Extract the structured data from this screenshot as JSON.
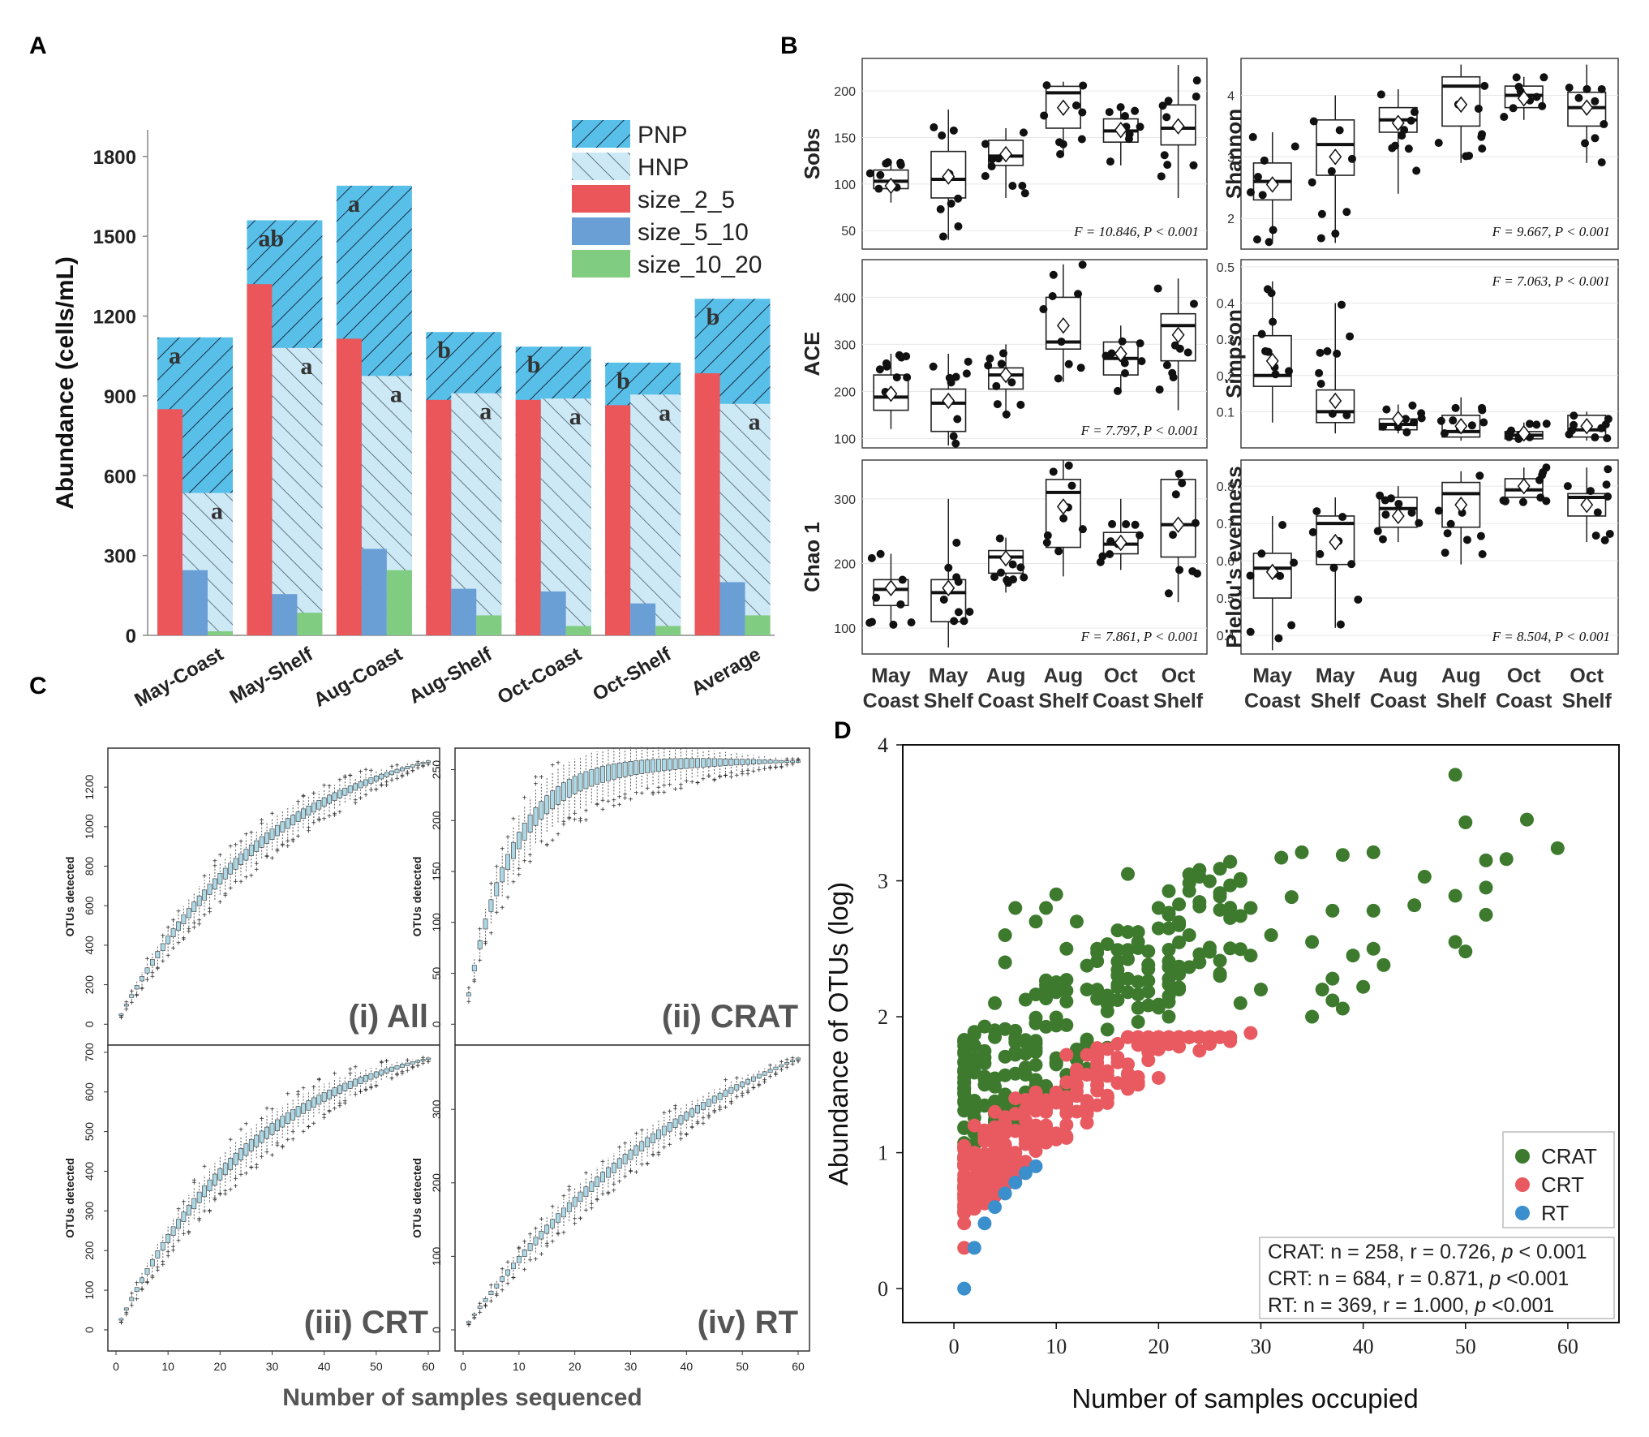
{
  "panel_labels": {
    "a": "A",
    "b": "B",
    "c": "C",
    "d": "D"
  },
  "colors": {
    "pnp": "#58c0e8",
    "hnp": "#cde9f6",
    "size_2_5": "#ea5659",
    "size_5_10": "#6a9fd6",
    "size_10_20": "#80cc80",
    "crat": "#3d7a2e",
    "crt": "#e85a60",
    "rt": "#3a8fcc",
    "box_fill": "#add8e6"
  },
  "panel_a": {
    "chart_data": {
      "type": "bar",
      "ylabel": "Abundance (cells/mL)",
      "ylim": [
        0,
        1900
      ],
      "yticks": [
        "0",
        "300",
        "600",
        "900",
        "1200",
        "1500",
        "1800"
      ],
      "categories": [
        "May-Coast",
        "May-Shelf",
        "Aug-Coast",
        "Aug-Shelf",
        "Oct-Coast",
        "Oct-Shelf",
        "Average"
      ],
      "legend": [
        "PNP",
        "HNP",
        "size_2_5",
        "size_5_10",
        "size_10_20"
      ],
      "series": [
        {
          "name": "PNP",
          "values": [
            1120,
            1560,
            1690,
            1140,
            1085,
            1025,
            1265
          ]
        },
        {
          "name": "HNP",
          "values": [
            535,
            1080,
            975,
            910,
            890,
            905,
            870
          ]
        },
        {
          "name": "size_2_5",
          "values": [
            850,
            1320,
            1115,
            885,
            885,
            865,
            985
          ]
        },
        {
          "name": "size_5_10",
          "values": [
            245,
            155,
            325,
            175,
            165,
            120,
            200
          ]
        },
        {
          "name": "size_10_20",
          "values": [
            15,
            85,
            245,
            75,
            35,
            35,
            75
          ]
        }
      ],
      "pnp_letters": [
        "a",
        "ab",
        "a",
        "b",
        "b",
        "b",
        "b"
      ],
      "hnp_letters": [
        "a",
        "a",
        "a",
        "a",
        "a",
        "a",
        "a"
      ]
    }
  },
  "panel_b": {
    "chart_data": {
      "type": "boxplot",
      "groups_top": [
        "May",
        "May",
        "Aug",
        "Aug",
        "Oct",
        "Oct"
      ],
      "groups_bottom": [
        "Coast",
        "Shelf",
        "Coast",
        "Shelf",
        "Coast",
        "Shelf"
      ],
      "panels": [
        {
          "ylabel": "Sobs",
          "ylim": [
            30,
            235
          ],
          "yticks": [
            50,
            100,
            150,
            200
          ],
          "stat": "F = 10.846, P < 0.001",
          "boxes": [
            [
              80,
              95,
              103,
              115,
              125,
              98
            ],
            [
              40,
              85,
              105,
              135,
              180,
              108
            ],
            [
              85,
              120,
              130,
              147,
              160,
              132
            ],
            [
              130,
              160,
              198,
              205,
              210,
              182
            ],
            [
              120,
              145,
              157,
              170,
              185,
              158
            ],
            [
              85,
              142,
              160,
              185,
              228,
              162
            ]
          ]
        },
        {
          "ylabel": "Shannon",
          "ylim": [
            1.5,
            4.6
          ],
          "yticks": [
            2,
            3,
            4
          ],
          "stat": "F = 9.667, P < 0.001",
          "boxes": [
            [
              1.6,
              2.3,
              2.6,
              2.9,
              3.4,
              2.55
            ],
            [
              1.6,
              2.7,
              3.2,
              3.6,
              4.0,
              3.0
            ],
            [
              2.4,
              3.4,
              3.6,
              3.8,
              4.1,
              3.55
            ],
            [
              2.9,
              3.5,
              4.15,
              4.3,
              4.5,
              3.85
            ],
            [
              3.6,
              3.8,
              4.0,
              4.15,
              4.3,
              3.95
            ],
            [
              2.9,
              3.5,
              3.8,
              4.05,
              4.5,
              3.8
            ]
          ]
        },
        {
          "ylabel": "ACE",
          "ylim": [
            80,
            480
          ],
          "yticks": [
            100,
            200,
            300,
            400
          ],
          "stat": "F = 7.797,   P < 0.001",
          "boxes": [
            [
              120,
              160,
              188,
              235,
              280,
              195
            ],
            [
              85,
              115,
              175,
              205,
              280,
              180
            ],
            [
              150,
              205,
              235,
              250,
              300,
              235
            ],
            [
              220,
              290,
              305,
              400,
              470,
              340
            ],
            [
              200,
              235,
              270,
              305,
              340,
              280
            ],
            [
              160,
              265,
              340,
              365,
              440,
              320
            ]
          ]
        },
        {
          "ylabel": "Simpson",
          "ylim": [
            0,
            0.52
          ],
          "yticks": [
            0.1,
            0.2,
            0.3,
            0.4,
            0.5
          ],
          "stat": "F = 7.063, P < 0.001",
          "boxes": [
            [
              0.07,
              0.17,
              0.2,
              0.31,
              0.46,
              0.24
            ],
            [
              0.04,
              0.07,
              0.1,
              0.16,
              0.4,
              0.13
            ],
            [
              0.04,
              0.05,
              0.065,
              0.08,
              0.12,
              0.08
            ],
            [
              0.02,
              0.03,
              0.045,
              0.09,
              0.14,
              0.06
            ],
            [
              0.02,
              0.025,
              0.035,
              0.045,
              0.07,
              0.04
            ],
            [
              0.02,
              0.03,
              0.05,
              0.09,
              0.1,
              0.06
            ]
          ]
        },
        {
          "ylabel": "Chao 1",
          "ylim": [
            60,
            360
          ],
          "yticks": [
            100,
            200,
            300
          ],
          "stat": "F = 7.861, P < 0.001",
          "boxes": [
            [
              105,
              135,
              160,
              175,
              215,
              162
            ],
            [
              70,
              110,
              155,
              175,
              300,
              162
            ],
            [
              155,
              185,
              210,
              220,
              240,
              208
            ],
            [
              180,
              225,
              310,
              330,
              360,
              288
            ],
            [
              190,
              215,
              230,
              248,
              300,
              232
            ],
            [
              140,
              210,
              260,
              330,
              340,
              260
            ]
          ]
        },
        {
          "ylabel": "Pielou's evenness",
          "ylim": [
            0.35,
            0.87
          ],
          "yticks": [
            0.4,
            0.5,
            0.6,
            0.7,
            0.8
          ],
          "stat": "F = 8.504, P < 0.001",
          "boxes": [
            [
              0.36,
              0.5,
              0.58,
              0.62,
              0.72,
              0.57
            ],
            [
              0.42,
              0.59,
              0.7,
              0.72,
              0.77,
              0.65
            ],
            [
              0.65,
              0.69,
              0.74,
              0.77,
              0.8,
              0.72
            ],
            [
              0.59,
              0.69,
              0.78,
              0.81,
              0.84,
              0.75
            ],
            [
              0.75,
              0.77,
              0.79,
              0.82,
              0.85,
              0.8
            ],
            [
              0.65,
              0.72,
              0.77,
              0.78,
              0.85,
              0.75
            ]
          ]
        }
      ]
    }
  },
  "panel_c": {
    "chart_data": {
      "type": "boxplot",
      "xlabel": "Number of samples sequenced",
      "ylabel": "OTUs detected",
      "xticks": [
        0,
        10,
        20,
        30,
        40,
        50,
        60
      ],
      "subplots": [
        {
          "label": "(i) All",
          "ymax": 1330,
          "yticks": [
            0,
            200,
            400,
            600,
            800,
            1000,
            1200
          ],
          "k": 0.032
        },
        {
          "label": "(ii) CRAT",
          "ymax": 258,
          "yticks": [
            0,
            50,
            100,
            150,
            200,
            250
          ],
          "k": 0.12
        },
        {
          "label": "(iii) CRT",
          "ymax": 684,
          "yticks": [
            0,
            100,
            200,
            300,
            400,
            500,
            600,
            700
          ],
          "k": 0.035
        },
        {
          "label": "(iv) RT",
          "ymax": 369,
          "yticks": [
            0,
            100,
            200,
            300
          ],
          "k": 0.02
        }
      ]
    }
  },
  "panel_d": {
    "chart_data": {
      "type": "scatter",
      "xlabel": "Number of samples occupied",
      "ylabel": "Abundance of  OTUs (log)",
      "xlim": [
        -5,
        65
      ],
      "ylim": [
        -0.25,
        4
      ],
      "xticks": [
        "0",
        "10",
        "20",
        "30",
        "40",
        "50",
        "60"
      ],
      "yticks": [
        "0",
        "1",
        "2",
        "3",
        "4"
      ],
      "legend": [
        "CRAT",
        "CRT",
        "RT"
      ],
      "stats": [
        {
          "prefix": "CRAT: n = 258, r = 0.726, ",
          "p": "p",
          "suffix": " < 0.001"
        },
        {
          "prefix": "CRT: n = 684, r = 0.871, ",
          "p": "p",
          "suffix": " <0.001"
        },
        {
          "prefix": "RT: n = 369, r = 1.000, ",
          "p": "p",
          "suffix": " <0.001"
        }
      ],
      "series": [
        {
          "name": "CRAT",
          "points": [
            [
              49,
              3.78
            ],
            [
              50,
              3.43
            ],
            [
              56,
              3.45
            ],
            [
              59,
              3.24
            ],
            [
              46,
              3.03
            ],
            [
              52,
              3.15
            ],
            [
              54,
              3.16
            ],
            [
              52,
              2.95
            ],
            [
              49,
              2.89
            ],
            [
              49,
              2.55
            ],
            [
              50,
              2.48
            ],
            [
              45,
              2.82
            ],
            [
              52,
              2.75
            ],
            [
              42,
              2.38
            ],
            [
              41,
              2.5
            ],
            [
              39,
              2.45
            ],
            [
              40,
              2.22
            ],
            [
              38,
              2.06
            ],
            [
              37,
              2.12
            ],
            [
              35,
              2.0
            ],
            [
              36,
              2.2
            ],
            [
              37,
              2.28
            ],
            [
              35,
              2.55
            ],
            [
              37,
              2.78
            ],
            [
              38,
              3.19
            ],
            [
              41,
              3.21
            ],
            [
              41,
              2.78
            ],
            [
              34,
              3.21
            ],
            [
              32,
              3.17
            ],
            [
              33,
              2.88
            ],
            [
              29,
              2.8
            ],
            [
              31,
              2.6
            ],
            [
              29,
              2.45
            ],
            [
              30,
              2.2
            ],
            [
              28,
              2.1
            ],
            [
              26,
              2.3
            ],
            [
              24,
              2.4
            ],
            [
              23,
              2.6
            ],
            [
              22,
              2.2
            ],
            [
              21,
              2.0
            ],
            [
              20,
              2.8
            ],
            [
              21,
              2.75
            ],
            [
              21,
              2.65
            ],
            [
              19,
              2.35
            ],
            [
              18,
              2.55
            ],
            [
              17,
              3.05
            ],
            [
              16,
              2.3
            ],
            [
              15,
              2.1
            ],
            [
              14,
              2.5
            ],
            [
              12,
              2.7
            ],
            [
              11,
              2.5
            ],
            [
              13,
              2.2
            ],
            [
              10,
              2.9
            ],
            [
              9,
              2.8
            ],
            [
              8,
              2.7
            ],
            [
              6,
              2.8
            ],
            [
              5,
              2.6
            ],
            [
              5,
              2.4
            ],
            [
              4,
              2.1
            ],
            [
              4,
              1.9
            ],
            [
              3,
              1.7
            ],
            [
              3,
              1.5
            ]
          ]
        },
        {
          "name": "CRT",
          "points": [
            [
              29,
              1.88
            ],
            [
              27,
              1.82
            ],
            [
              25,
              1.8
            ],
            [
              24,
              1.75
            ],
            [
              22,
              1.78
            ],
            [
              20,
              1.55
            ],
            [
              18,
              1.5
            ],
            [
              19,
              1.68
            ],
            [
              17,
              1.65
            ],
            [
              16,
              1.7
            ],
            [
              15,
              1.6
            ],
            [
              14,
              1.55
            ],
            [
              12,
              1.45
            ],
            [
              10,
              1.4
            ],
            [
              11,
              1.72
            ],
            [
              9,
              1.3
            ],
            [
              8,
              1.2
            ],
            [
              7,
              1.1
            ],
            [
              6,
              1.0
            ],
            [
              5,
              0.9
            ],
            [
              4,
              0.8
            ],
            [
              3,
              0.75
            ],
            [
              2,
              0.7
            ],
            [
              1,
              0.48
            ],
            [
              1,
              0.3
            ],
            [
              1,
              0.6
            ],
            [
              1,
              0.75
            ],
            [
              1,
              0.9
            ],
            [
              1,
              1.05
            ],
            [
              2,
              1.0
            ],
            [
              2,
              1.2
            ],
            [
              3,
              1.15
            ],
            [
              4,
              1.3
            ],
            [
              5,
              1.25
            ],
            [
              6,
              1.4
            ]
          ]
        },
        {
          "name": "RT",
          "points": [
            [
              1,
              0.0
            ],
            [
              2,
              0.3
            ],
            [
              3,
              0.48
            ],
            [
              4,
              0.6
            ],
            [
              5,
              0.7
            ],
            [
              6,
              0.78
            ],
            [
              7,
              0.85
            ],
            [
              8,
              0.9
            ]
          ]
        }
      ]
    }
  }
}
